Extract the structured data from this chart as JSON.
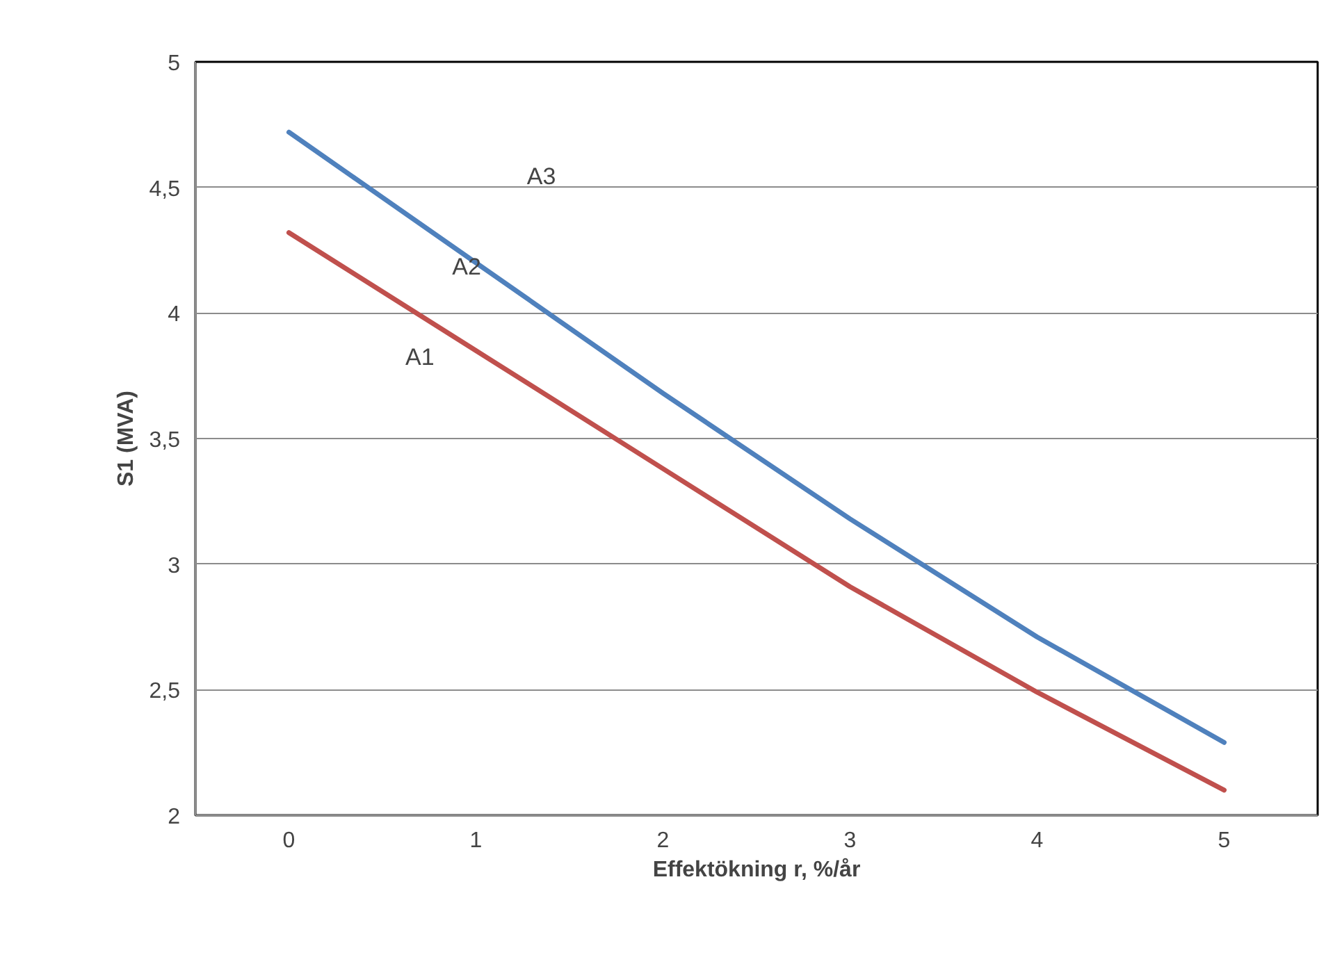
{
  "chart_data": {
    "type": "line",
    "xlabel": "Effektökning r, %/år",
    "ylabel": "S1 (MVA)",
    "categories": [
      "0",
      "1",
      "2",
      "3",
      "4",
      "5"
    ],
    "series": [
      {
        "color": "#c0504d",
        "values": [
          4.32,
          3.85,
          3.38,
          2.91,
          2.49,
          2.1
        ]
      },
      {
        "color": "#4f81bd",
        "values": [
          4.72,
          4.2,
          3.68,
          3.18,
          2.71,
          2.29
        ]
      }
    ],
    "ylim": [
      2,
      5
    ],
    "yticks": [
      2,
      {
        "value": 2.5,
        "label": "2,5"
      },
      3,
      {
        "value": 3.5,
        "label": "3,5"
      },
      4,
      {
        "value": 4.5,
        "label": "4,5"
      },
      5
    ],
    "grid": "y",
    "marker": "none",
    "line_style": "solid",
    "annotations": [
      "A1",
      "A2",
      "A3"
    ]
  }
}
